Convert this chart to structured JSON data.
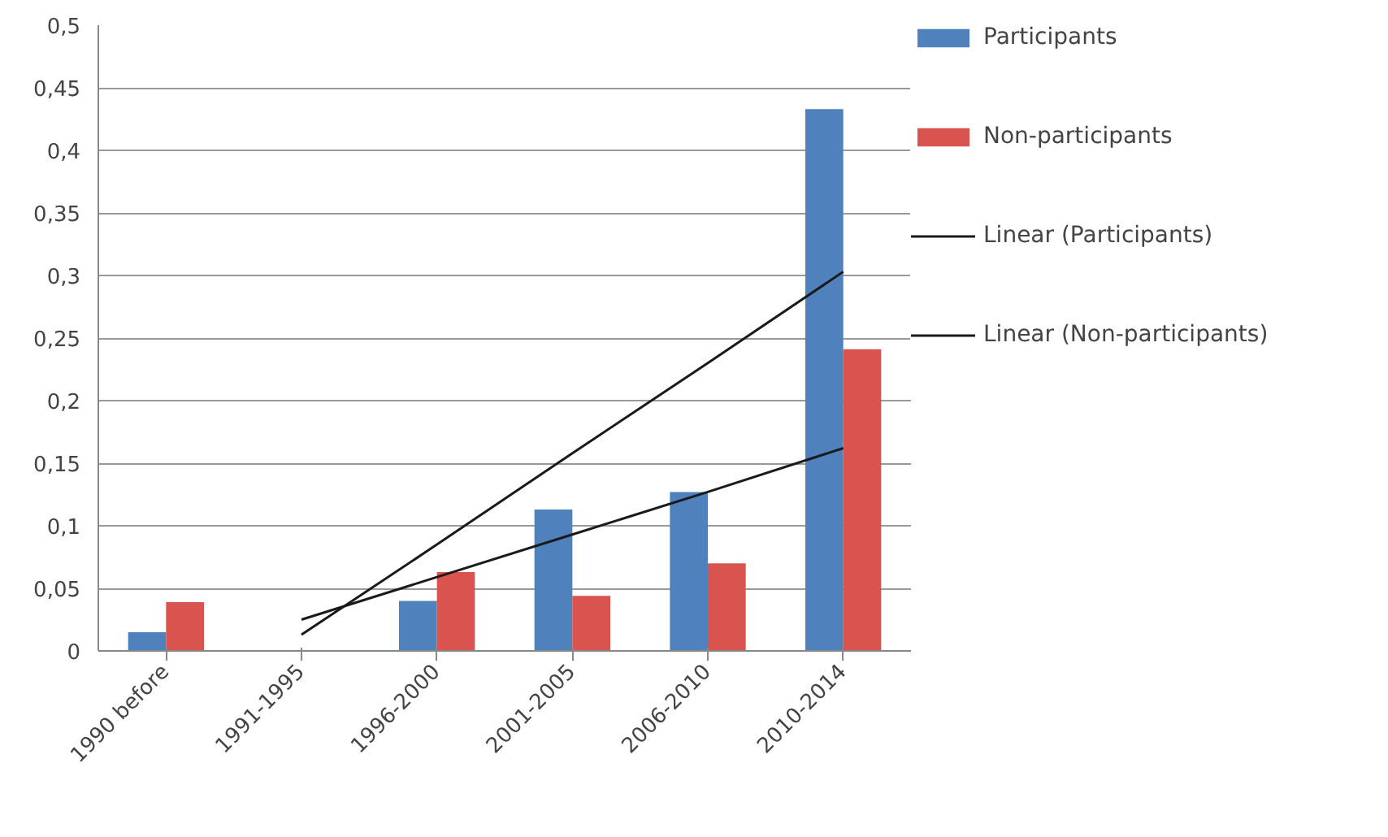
{
  "chart_data": {
    "type": "bar",
    "categories": [
      "1990 before",
      "1991-1995",
      "1996-2000",
      "2001-2005",
      "2006-2010",
      "2010-2014"
    ],
    "series": [
      {
        "name": "Participants",
        "color": "#4f81bd",
        "values": [
          0.015,
          0,
          0.04,
          0.113,
          0.127,
          0.433
        ]
      },
      {
        "name": "Non-participants",
        "color": "#d9534f",
        "values": [
          0.039,
          0,
          0.063,
          0.044,
          0.07,
          0.241
        ]
      },
      {
        "name": "Linear (Participants)",
        "type": "line",
        "color": "#1a1a1a",
        "values": [
          null,
          0.013,
          0.085,
          0.158,
          0.23,
          0.303
        ]
      },
      {
        "name": "Linear (Non-participants)",
        "type": "line",
        "color": "#1a1a1a",
        "values": [
          null,
          0.025,
          0.059,
          0.093,
          0.127,
          0.162
        ]
      }
    ],
    "ylim": [
      0,
      0.5
    ],
    "yticks": [
      0,
      {
        "value": 0.05,
        "label": "0,05"
      },
      {
        "value": 0.1,
        "label": "0,1"
      },
      {
        "value": 0.15,
        "label": "0,15"
      },
      {
        "value": 0.2,
        "label": "0,2"
      },
      {
        "value": 0.25,
        "label": "0,25"
      },
      {
        "value": 0.3,
        "label": "0,3"
      },
      {
        "value": 0.35,
        "label": "0,35"
      },
      {
        "value": 0.4,
        "label": "0,4"
      },
      {
        "value": 0.45,
        "label": "0,45"
      },
      {
        "value": 0.5,
        "label": "0,5"
      }
    ],
    "grid": "y",
    "legend": "right"
  }
}
